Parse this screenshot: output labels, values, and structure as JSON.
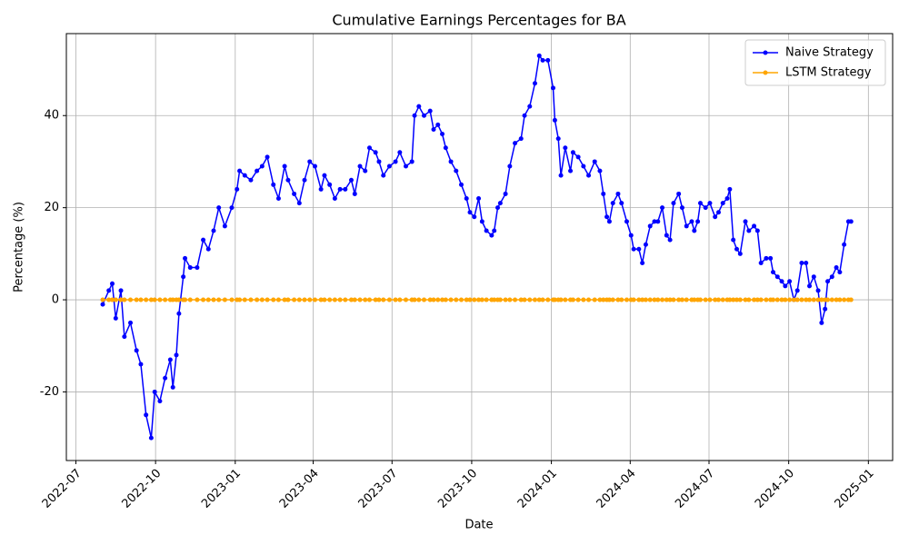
{
  "chart_data": {
    "type": "line",
    "title": "Cumulative Earnings Percentages for BA",
    "xlabel": "Date",
    "ylabel": "Percentage (%)",
    "x": [
      "2022-08-01",
      "2022-08-08",
      "2022-08-12",
      "2022-08-16",
      "2022-08-22",
      "2022-08-26",
      "2022-09-02",
      "2022-09-09",
      "2022-09-14",
      "2022-09-20",
      "2022-09-26",
      "2022-09-30",
      "2022-10-06",
      "2022-10-12",
      "2022-10-18",
      "2022-10-21",
      "2022-10-25",
      "2022-10-28",
      "2022-11-02",
      "2022-11-04",
      "2022-11-10",
      "2022-11-18",
      "2022-11-25",
      "2022-12-01",
      "2022-12-07",
      "2022-12-13",
      "2022-12-20",
      "2022-12-28",
      "2023-01-03",
      "2023-01-06",
      "2023-01-12",
      "2023-01-19",
      "2023-01-26",
      "2023-02-01",
      "2023-02-07",
      "2023-02-14",
      "2023-02-20",
      "2023-02-27",
      "2023-03-03",
      "2023-03-10",
      "2023-03-16",
      "2023-03-22",
      "2023-03-28",
      "2023-04-03",
      "2023-04-10",
      "2023-04-14",
      "2023-04-20",
      "2023-04-26",
      "2023-05-02",
      "2023-05-08",
      "2023-05-15",
      "2023-05-19",
      "2023-05-25",
      "2023-05-31",
      "2023-06-05",
      "2023-06-12",
      "2023-06-16",
      "2023-06-21",
      "2023-06-28",
      "2023-07-05",
      "2023-07-10",
      "2023-07-17",
      "2023-07-24",
      "2023-07-27",
      "2023-08-01",
      "2023-08-07",
      "2023-08-14",
      "2023-08-18",
      "2023-08-23",
      "2023-08-28",
      "2023-09-01",
      "2023-09-07",
      "2023-09-13",
      "2023-09-19",
      "2023-09-25",
      "2023-09-29",
      "2023-10-04",
      "2023-10-09",
      "2023-10-13",
      "2023-10-18",
      "2023-10-24",
      "2023-10-27",
      "2023-10-31",
      "2023-11-03",
      "2023-11-09",
      "2023-11-14",
      "2023-11-20",
      "2023-11-27",
      "2023-12-01",
      "2023-12-07",
      "2023-12-13",
      "2023-12-18",
      "2023-12-22",
      "2023-12-28",
      "2024-01-03",
      "2024-01-05",
      "2024-01-09",
      "2024-01-12",
      "2024-01-17",
      "2024-01-23",
      "2024-01-26",
      "2024-02-01",
      "2024-02-07",
      "2024-02-13",
      "2024-02-20",
      "2024-02-26",
      "2024-03-01",
      "2024-03-05",
      "2024-03-08",
      "2024-03-12",
      "2024-03-18",
      "2024-03-22",
      "2024-03-28",
      "2024-04-02",
      "2024-04-05",
      "2024-04-11",
      "2024-04-15",
      "2024-04-19",
      "2024-04-24",
      "2024-04-29",
      "2024-05-03",
      "2024-05-08",
      "2024-05-13",
      "2024-05-17",
      "2024-05-21",
      "2024-05-27",
      "2024-05-31",
      "2024-06-05",
      "2024-06-11",
      "2024-06-14",
      "2024-06-18",
      "2024-06-21",
      "2024-06-27",
      "2024-07-02",
      "2024-07-08",
      "2024-07-12",
      "2024-07-17",
      "2024-07-22",
      "2024-07-25",
      "2024-07-29",
      "2024-08-02",
      "2024-08-06",
      "2024-08-12",
      "2024-08-16",
      "2024-08-22",
      "2024-08-26",
      "2024-08-30",
      "2024-09-05",
      "2024-09-10",
      "2024-09-13",
      "2024-09-18",
      "2024-09-23",
      "2024-09-27",
      "2024-10-02",
      "2024-10-07",
      "2024-10-11",
      "2024-10-16",
      "2024-10-21",
      "2024-10-25",
      "2024-10-30",
      "2024-11-04",
      "2024-11-08",
      "2024-11-12",
      "2024-11-15",
      "2024-11-20",
      "2024-11-25",
      "2024-11-29",
      "2024-12-04",
      "2024-12-09",
      "2024-12-12"
    ],
    "series": [
      {
        "name": "Naive Strategy",
        "color": "#0000ff",
        "values": [
          -1,
          2,
          3.5,
          -4,
          2,
          -8,
          -5,
          -11,
          -14,
          -25,
          -30,
          -20,
          -22,
          -17,
          -13,
          -19,
          -12,
          -3,
          5,
          9,
          7,
          7,
          13,
          11,
          15,
          20,
          16,
          20,
          24,
          28,
          27,
          26,
          28,
          29,
          31,
          25,
          22,
          29,
          26,
          23,
          21,
          26,
          30,
          29,
          24,
          27,
          25,
          22,
          24,
          24,
          26,
          23,
          29,
          28,
          33,
          32,
          30,
          27,
          29,
          30,
          32,
          29,
          30,
          40,
          42,
          40,
          41,
          37,
          38,
          36,
          33,
          30,
          28,
          25,
          22,
          19,
          18,
          22,
          17,
          15,
          14,
          15,
          20,
          21,
          23,
          29,
          34,
          35,
          40,
          42,
          47,
          53,
          52,
          52,
          46,
          39,
          35,
          27,
          33,
          28,
          32,
          31,
          29,
          27,
          30,
          28,
          23,
          18,
          17,
          21,
          23,
          21,
          17,
          14,
          11,
          11,
          8,
          12,
          16,
          17,
          17,
          20,
          14,
          13,
          21,
          23,
          20,
          16,
          17,
          15,
          17,
          21,
          20,
          21,
          18,
          19,
          21,
          22,
          24,
          13,
          11,
          10,
          17,
          15,
          16,
          15,
          8,
          9,
          9,
          6,
          5,
          4,
          3,
          4,
          0,
          2,
          8,
          8,
          3,
          5,
          2,
          -5,
          -2,
          4,
          5,
          7,
          6,
          12,
          17,
          17
        ]
      },
      {
        "name": "LSTM Strategy",
        "color": "#ffa500",
        "values": [
          0,
          0,
          0,
          0,
          0,
          0,
          0,
          0,
          0,
          0,
          0,
          0,
          0,
          0,
          0,
          0,
          0,
          0,
          0,
          0,
          0,
          0,
          0,
          0,
          0,
          0,
          0,
          0,
          0,
          0,
          0,
          0,
          0,
          0,
          0,
          0,
          0,
          0,
          0,
          0,
          0,
          0,
          0,
          0,
          0,
          0,
          0,
          0,
          0,
          0,
          0,
          0,
          0,
          0,
          0,
          0,
          0,
          0,
          0,
          0,
          0,
          0,
          0,
          0,
          0,
          0,
          0,
          0,
          0,
          0,
          0,
          0,
          0,
          0,
          0,
          0,
          0,
          0,
          0,
          0,
          0,
          0,
          0,
          0,
          0,
          0,
          0,
          0,
          0,
          0,
          0,
          0,
          0,
          0,
          0,
          0,
          0,
          0,
          0,
          0,
          0,
          0,
          0,
          0,
          0,
          0,
          0,
          0,
          0,
          0,
          0,
          0,
          0,
          0,
          0,
          0,
          0,
          0,
          0,
          0,
          0,
          0,
          0,
          0,
          0,
          0,
          0,
          0,
          0,
          0,
          0,
          0,
          0,
          0,
          0,
          0,
          0,
          0,
          0,
          0,
          0,
          0,
          0,
          0,
          0,
          0,
          0,
          0,
          0,
          0,
          0,
          0,
          0,
          0,
          0,
          0,
          0,
          0,
          0,
          0,
          0,
          0,
          0,
          0,
          0,
          0,
          0,
          0,
          0,
          0
        ]
      }
    ],
    "xlim": [
      "2022-06-20",
      "2025-01-29"
    ],
    "xticks": [
      {
        "value": "2022-07-01",
        "label": "2022-07"
      },
      {
        "value": "2022-10-01",
        "label": "2022-10"
      },
      {
        "value": "2023-01-01",
        "label": "2023-01"
      },
      {
        "value": "2023-04-01",
        "label": "2023-04"
      },
      {
        "value": "2023-07-01",
        "label": "2023-07"
      },
      {
        "value": "2023-10-01",
        "label": "2023-10"
      },
      {
        "value": "2024-01-01",
        "label": "2024-01"
      },
      {
        "value": "2024-04-01",
        "label": "2024-04"
      },
      {
        "value": "2024-07-01",
        "label": "2024-07"
      },
      {
        "value": "2024-10-01",
        "label": "2024-10"
      },
      {
        "value": "2025-01-01",
        "label": "2025-01"
      }
    ],
    "ylim": [
      -34.9,
      57.8
    ],
    "yticks": [
      -20,
      0,
      20,
      40
    ],
    "grid": true,
    "legend": "upper right"
  }
}
